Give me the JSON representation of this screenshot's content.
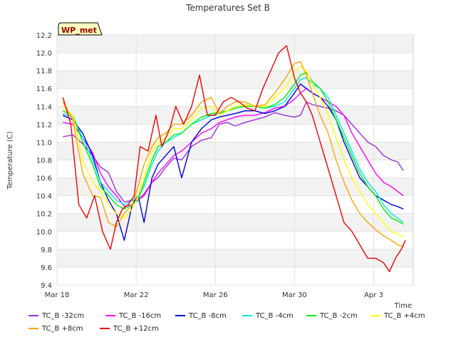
{
  "chart_data": {
    "type": "line",
    "title": "Temperatures Set B",
    "xlabel": "Time",
    "ylabel": "Temperature (C)",
    "site_label": "WP_met",
    "x_ticks": [
      {
        "label": "Mar 18",
        "day": 0
      },
      {
        "label": "Mar 22",
        "day": 4
      },
      {
        "label": "Mar 26",
        "day": 8
      },
      {
        "label": "Mar 30",
        "day": 12
      },
      {
        "label": "Apr 3",
        "day": 16
      }
    ],
    "xlim": [
      0,
      18
    ],
    "ylim": [
      9.4,
      12.2
    ],
    "y_ticks": [
      "9.4",
      "9.6",
      "9.8",
      "10.0",
      "10.2",
      "10.4",
      "10.6",
      "10.8",
      "11.0",
      "11.2",
      "11.4",
      "11.6",
      "11.8",
      "12.0",
      "12.2"
    ],
    "grid": true,
    "legend_position": "bottom",
    "series": [
      {
        "name": "TC_B -32cm",
        "color": "#9b30e0",
        "x": [
          0.3,
          0.8,
          1.3,
          1.8,
          2.2,
          2.6,
          3.0,
          3.4,
          3.8,
          4.1,
          4.4,
          4.8,
          5.1,
          5.5,
          5.9,
          6.3,
          6.8,
          7.3,
          7.8,
          8.2,
          8.6,
          9.0,
          9.5,
          10.0,
          10.5,
          11.0,
          11.5,
          12.0,
          12.3,
          12.6,
          12.9,
          13.3,
          13.7,
          14.1,
          14.5,
          14.9,
          15.3,
          15.7,
          16.1,
          16.5,
          16.9,
          17.2,
          17.5
        ],
        "y": [
          11.06,
          11.08,
          10.98,
          10.85,
          10.72,
          10.66,
          10.45,
          10.33,
          10.35,
          10.35,
          10.42,
          10.55,
          10.6,
          10.72,
          10.82,
          10.8,
          10.95,
          11.02,
          11.05,
          11.2,
          11.22,
          11.18,
          11.22,
          11.25,
          11.28,
          11.33,
          11.3,
          11.28,
          11.3,
          11.45,
          11.42,
          11.4,
          11.38,
          11.35,
          11.3,
          11.2,
          11.1,
          11.0,
          10.95,
          10.85,
          10.8,
          10.78,
          10.68
        ]
      },
      {
        "name": "TC_B -16cm",
        "color": "#ff00ff",
        "x": [
          0.3,
          0.8,
          1.3,
          1.8,
          2.2,
          2.6,
          3.0,
          3.4,
          3.8,
          4.1,
          4.4,
          4.8,
          5.1,
          5.5,
          5.9,
          6.3,
          6.8,
          7.3,
          7.8,
          8.2,
          8.6,
          9.0,
          9.5,
          10.0,
          10.5,
          11.0,
          11.5,
          12.0,
          12.3,
          12.6,
          12.9,
          13.3,
          13.7,
          14.1,
          14.5,
          14.9,
          15.3,
          15.7,
          16.1,
          16.5,
          16.9,
          17.2,
          17.5
        ],
        "y": [
          11.22,
          11.2,
          11.05,
          10.88,
          10.65,
          10.5,
          10.4,
          10.28,
          10.3,
          10.35,
          10.4,
          10.55,
          10.65,
          10.75,
          10.85,
          10.9,
          11.0,
          11.1,
          11.15,
          11.22,
          11.25,
          11.28,
          11.3,
          11.3,
          11.33,
          11.38,
          11.4,
          11.48,
          11.55,
          11.6,
          11.55,
          11.5,
          11.45,
          11.4,
          11.3,
          11.1,
          10.95,
          10.8,
          10.65,
          10.55,
          10.5,
          10.45,
          10.4
        ]
      },
      {
        "name": "TC_B -8cm",
        "color": "#0000dd",
        "x": [
          0.3,
          0.8,
          1.3,
          1.8,
          2.2,
          2.6,
          3.0,
          3.4,
          3.8,
          4.1,
          4.4,
          4.8,
          5.1,
          5.5,
          5.9,
          6.3,
          6.8,
          7.3,
          7.8,
          8.2,
          8.6,
          9.0,
          9.5,
          10.0,
          10.5,
          11.0,
          11.5,
          12.0,
          12.3,
          12.6,
          12.9,
          13.3,
          13.7,
          14.1,
          14.5,
          14.9,
          15.3,
          15.7,
          16.1,
          16.5,
          16.9,
          17.2,
          17.5
        ],
        "y": [
          11.3,
          11.25,
          11.1,
          10.85,
          10.55,
          10.35,
          10.2,
          9.9,
          10.3,
          10.4,
          10.1,
          10.6,
          10.75,
          10.85,
          10.95,
          10.6,
          11.0,
          11.15,
          11.25,
          11.28,
          11.3,
          11.32,
          11.35,
          11.35,
          11.32,
          11.35,
          11.4,
          11.55,
          11.65,
          11.6,
          11.55,
          11.5,
          11.4,
          11.25,
          11.0,
          10.8,
          10.6,
          10.5,
          10.4,
          10.35,
          10.3,
          10.28,
          10.25
        ]
      },
      {
        "name": "TC_B -4cm",
        "color": "#00e5ee",
        "x": [
          0.3,
          0.8,
          1.3,
          1.8,
          2.2,
          2.6,
          3.0,
          3.4,
          3.8,
          4.1,
          4.4,
          4.8,
          5.1,
          5.5,
          5.9,
          6.3,
          6.8,
          7.3,
          7.8,
          8.2,
          8.6,
          9.0,
          9.5,
          10.0,
          10.5,
          11.0,
          11.5,
          12.0,
          12.3,
          12.6,
          12.9,
          13.3,
          13.7,
          14.1,
          14.5,
          14.9,
          15.3,
          15.7,
          16.1,
          16.5,
          16.9,
          17.2,
          17.5
        ],
        "y": [
          11.32,
          11.28,
          11.05,
          10.8,
          10.55,
          10.45,
          10.35,
          10.3,
          10.35,
          10.4,
          10.5,
          10.75,
          10.9,
          11.0,
          11.05,
          11.1,
          11.2,
          11.25,
          11.3,
          11.32,
          11.35,
          11.4,
          11.42,
          11.4,
          11.38,
          11.4,
          11.45,
          11.6,
          11.7,
          11.72,
          11.65,
          11.6,
          11.5,
          11.3,
          11.1,
          10.9,
          10.7,
          10.55,
          10.45,
          10.3,
          10.2,
          10.15,
          10.1
        ]
      },
      {
        "name": "TC_B -2cm",
        "color": "#00ee00",
        "x": [
          0.3,
          0.8,
          1.3,
          1.8,
          2.2,
          2.6,
          3.0,
          3.4,
          3.8,
          4.1,
          4.4,
          4.8,
          5.1,
          5.5,
          5.9,
          6.3,
          6.8,
          7.3,
          7.8,
          8.2,
          8.6,
          9.0,
          9.5,
          10.0,
          10.5,
          11.0,
          11.5,
          12.0,
          12.3,
          12.6,
          12.9,
          13.3,
          13.7,
          14.1,
          14.5,
          14.9,
          15.3,
          15.7,
          16.1,
          16.5,
          16.9,
          17.2,
          17.5
        ],
        "y": [
          11.35,
          11.3,
          11.0,
          10.75,
          10.5,
          10.4,
          10.3,
          10.25,
          10.3,
          10.35,
          10.55,
          10.8,
          10.95,
          11.0,
          11.08,
          11.1,
          11.2,
          11.28,
          11.32,
          11.33,
          11.35,
          11.38,
          11.4,
          11.4,
          11.38,
          11.42,
          11.5,
          11.65,
          11.75,
          11.78,
          11.68,
          11.6,
          11.45,
          11.25,
          11.05,
          10.85,
          10.65,
          10.5,
          10.4,
          10.25,
          10.15,
          10.12,
          10.08
        ]
      },
      {
        "name": "TC_B +4cm",
        "color": "#ffff00",
        "x": [
          0.3,
          0.8,
          1.3,
          1.8,
          2.2,
          2.6,
          3.0,
          3.4,
          3.8,
          4.1,
          4.4,
          4.8,
          5.1,
          5.5,
          5.9,
          6.3,
          6.8,
          7.3,
          7.8,
          8.2,
          8.6,
          9.0,
          9.5,
          10.0,
          10.5,
          11.0,
          11.5,
          12.0,
          12.3,
          12.6,
          12.9,
          13.3,
          13.7,
          14.1,
          14.5,
          14.9,
          15.3,
          15.7,
          16.1,
          16.5,
          16.9,
          17.2,
          17.5
        ],
        "y": [
          11.4,
          11.3,
          10.8,
          10.55,
          10.45,
          10.3,
          10.2,
          10.15,
          10.25,
          10.4,
          10.6,
          10.9,
          11.0,
          11.05,
          11.15,
          11.15,
          11.25,
          11.38,
          11.4,
          11.3,
          11.35,
          11.4,
          11.42,
          11.4,
          11.4,
          11.5,
          11.6,
          11.78,
          11.85,
          11.8,
          11.65,
          11.5,
          11.3,
          11.05,
          10.8,
          10.6,
          10.45,
          10.3,
          10.2,
          10.1,
          10.0,
          9.97,
          9.94
        ]
      },
      {
        "name": "TC_B +8cm",
        "color": "#ffa500",
        "x": [
          0.3,
          0.8,
          1.3,
          1.8,
          2.2,
          2.6,
          3.0,
          3.4,
          3.8,
          4.1,
          4.4,
          4.8,
          5.1,
          5.5,
          5.9,
          6.3,
          6.8,
          7.3,
          7.8,
          8.2,
          8.6,
          9.0,
          9.5,
          10.0,
          10.5,
          11.0,
          11.5,
          12.0,
          12.3,
          12.6,
          12.9,
          13.3,
          13.7,
          14.1,
          14.5,
          14.9,
          15.3,
          15.7,
          16.1,
          16.5,
          16.9,
          17.2,
          17.5
        ],
        "y": [
          11.45,
          11.25,
          10.65,
          10.4,
          10.38,
          10.1,
          10.05,
          10.2,
          10.3,
          10.5,
          10.75,
          10.95,
          11.05,
          11.1,
          11.2,
          11.2,
          11.3,
          11.45,
          11.5,
          11.32,
          11.4,
          11.45,
          11.45,
          11.4,
          11.42,
          11.55,
          11.7,
          11.88,
          11.9,
          11.75,
          11.55,
          11.3,
          11.1,
          10.8,
          10.55,
          10.35,
          10.2,
          10.1,
          10.02,
          9.95,
          9.9,
          9.85,
          9.83
        ]
      },
      {
        "name": "TC_B +12cm",
        "color": "#ee0000",
        "x": [
          0.3,
          0.7,
          1.1,
          1.5,
          1.9,
          2.3,
          2.7,
          3.0,
          3.3,
          3.6,
          3.9,
          4.2,
          4.6,
          5.0,
          5.3,
          5.7,
          6.0,
          6.4,
          6.8,
          7.2,
          7.6,
          8.0,
          8.4,
          8.8,
          9.2,
          9.6,
          10.0,
          10.4,
          10.8,
          11.2,
          11.6,
          12.0,
          12.3,
          12.6,
          12.9,
          13.3,
          13.7,
          14.1,
          14.5,
          14.9,
          15.3,
          15.7,
          16.1,
          16.5,
          16.8,
          17.1,
          17.4,
          17.6
        ],
        "y": [
          11.5,
          11.2,
          10.3,
          10.15,
          10.4,
          10.0,
          9.8,
          10.1,
          10.25,
          10.3,
          10.4,
          10.95,
          10.9,
          11.3,
          10.95,
          11.15,
          11.4,
          11.2,
          11.4,
          11.75,
          11.3,
          11.3,
          11.45,
          11.5,
          11.45,
          11.38,
          11.35,
          11.6,
          11.8,
          12.0,
          12.08,
          11.72,
          11.55,
          11.45,
          11.3,
          11.0,
          10.7,
          10.4,
          10.1,
          10.0,
          9.85,
          9.7,
          9.7,
          9.65,
          9.55,
          9.7,
          9.8,
          9.9
        ]
      }
    ]
  }
}
